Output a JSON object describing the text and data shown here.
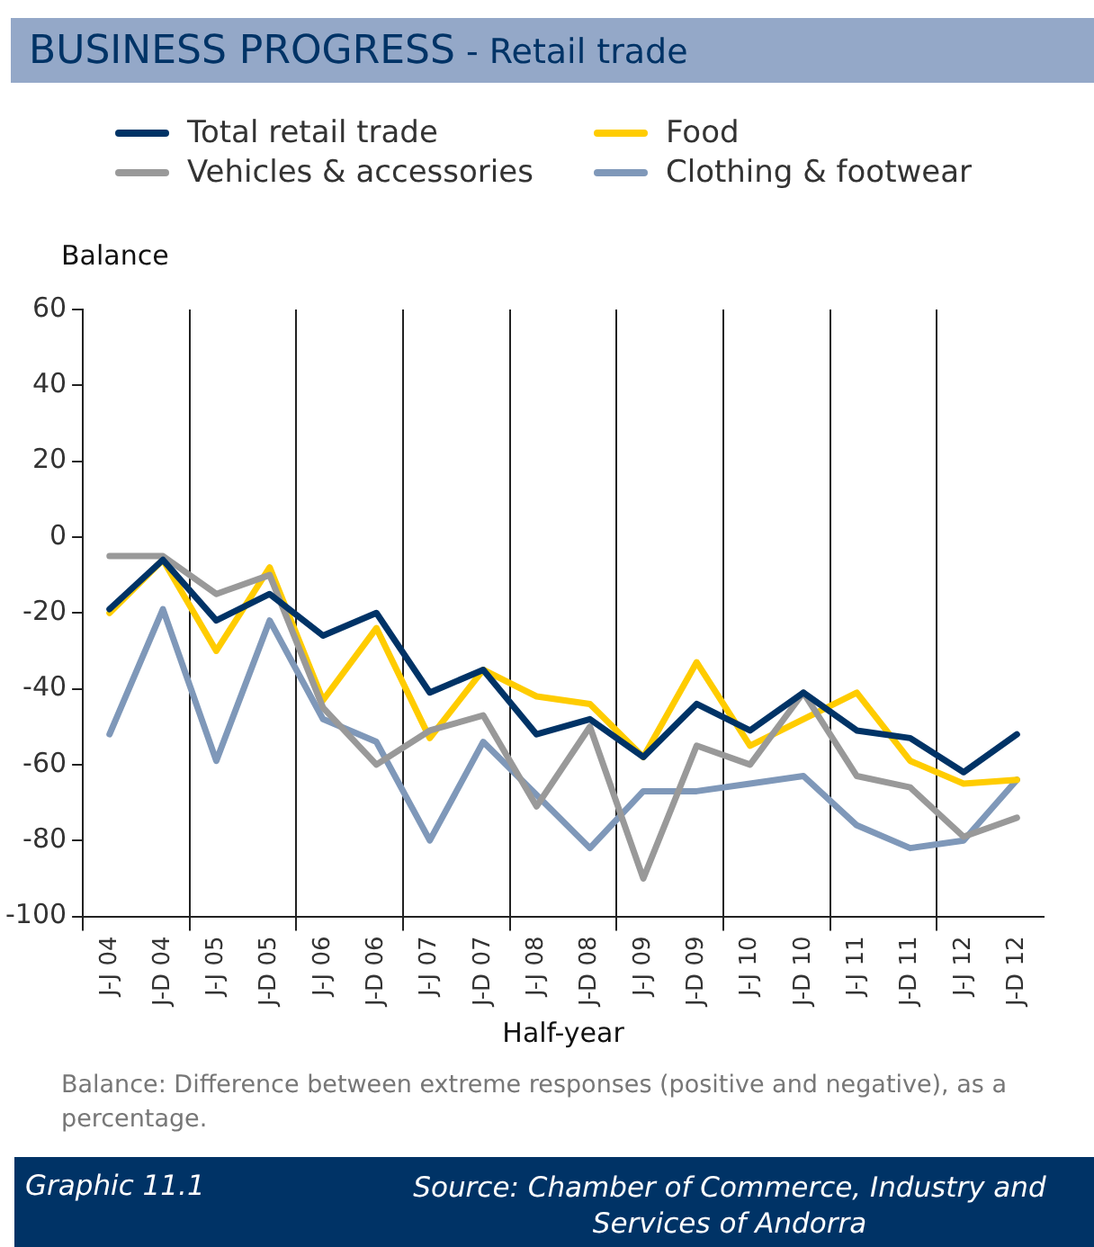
{
  "chart_data": {
    "type": "line",
    "title": "BUSINESS PROGRESS",
    "subtitle": "- Retail trade",
    "xlabel": "Half-year",
    "ylabel": "Balance",
    "categories": [
      "J-J 04",
      "J-D 04",
      "J-J 05",
      "J-D 05",
      "J-J 06",
      "J-D 06",
      "J-J 07",
      "J-D 07",
      "J-J 08",
      "J-D 08",
      "J-J 09",
      "J-D 09",
      "J-J 10",
      "J-D 10",
      "J-J 11",
      "J-D 11",
      "J-J 12",
      "J-D 12"
    ],
    "series": [
      {
        "name": "Total retail trade",
        "color": "#003366",
        "values": [
          -19,
          -6,
          -22,
          -15,
          -26,
          -20,
          -41,
          -35,
          -52,
          -48,
          -58,
          -44,
          -51,
          -41,
          -51,
          -53,
          -62,
          -52
        ]
      },
      {
        "name": "Vehicles & accessories",
        "color": "#999999",
        "values": [
          -5,
          -5,
          -15,
          -10,
          -45,
          -60,
          -51,
          -47,
          -71,
          -50,
          -90,
          -55,
          -60,
          -41,
          -63,
          -66,
          -79,
          -74
        ]
      },
      {
        "name": "Food",
        "color": "#ffcc00",
        "values": [
          -20,
          -6,
          -30,
          -8,
          -43,
          -24,
          -53,
          -35,
          -42,
          -44,
          -58,
          -33,
          -55,
          -48,
          -41,
          -59,
          -65,
          -64
        ]
      },
      {
        "name": "Clothing & footwear",
        "color": "#7f98b9",
        "values": [
          -52,
          -19,
          -59,
          -22,
          -48,
          -54,
          -80,
          -54,
          -68,
          -82,
          -67,
          -67,
          -65,
          -63,
          -76,
          -82,
          -80,
          -64
        ]
      }
    ],
    "ylim": [
      -100,
      60
    ],
    "yticks": [
      -100,
      -80,
      -60,
      -40,
      -20,
      0,
      20,
      40,
      60
    ],
    "grid": "x",
    "legend": "top",
    "marker": "none",
    "line_style": "solid",
    "annotations": [
      "Balance: Difference between extreme responses (positive and negative), as a percentage.",
      "Graphic  11.1",
      "Source: Chamber of Commerce, Industry and Services of Andorra"
    ]
  }
}
